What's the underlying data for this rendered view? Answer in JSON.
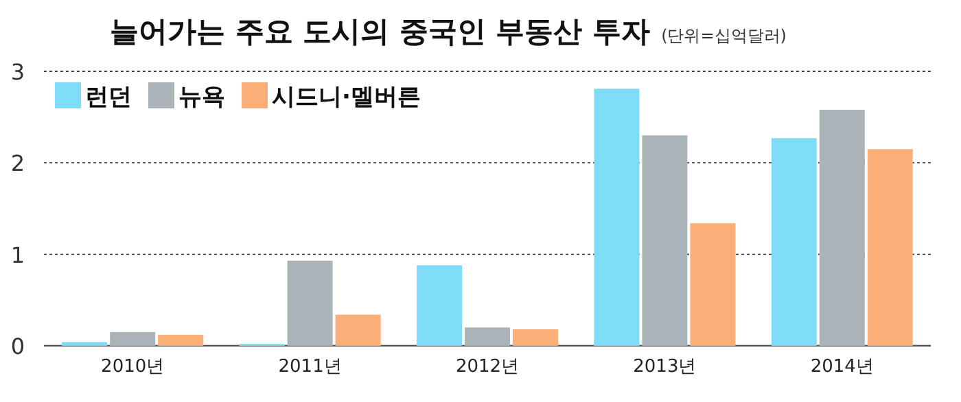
{
  "chart_data": {
    "type": "bar",
    "title": "늘어가는 주요 도시의 중국인 부동산 투자",
    "subtitle": "(단위=십억달러)",
    "categories": [
      "2010년",
      "2011년",
      "2012년",
      "2013년",
      "2014년"
    ],
    "series": [
      {
        "name": "런던",
        "color": "#7fdcf8",
        "values": [
          0.04,
          0.02,
          0.88,
          2.81,
          2.27
        ]
      },
      {
        "name": "뉴욕",
        "color": "#aab4b8",
        "values": [
          0.15,
          0.93,
          0.2,
          2.3,
          2.58
        ]
      },
      {
        "name": "시드니·멜버른",
        "color": "#fbae78",
        "values": [
          0.12,
          0.34,
          0.18,
          1.34,
          2.15
        ]
      }
    ],
    "ylim": [
      0,
      3
    ],
    "yticks": [
      0,
      1,
      2,
      3
    ],
    "grid": "y",
    "legend": "top left"
  }
}
